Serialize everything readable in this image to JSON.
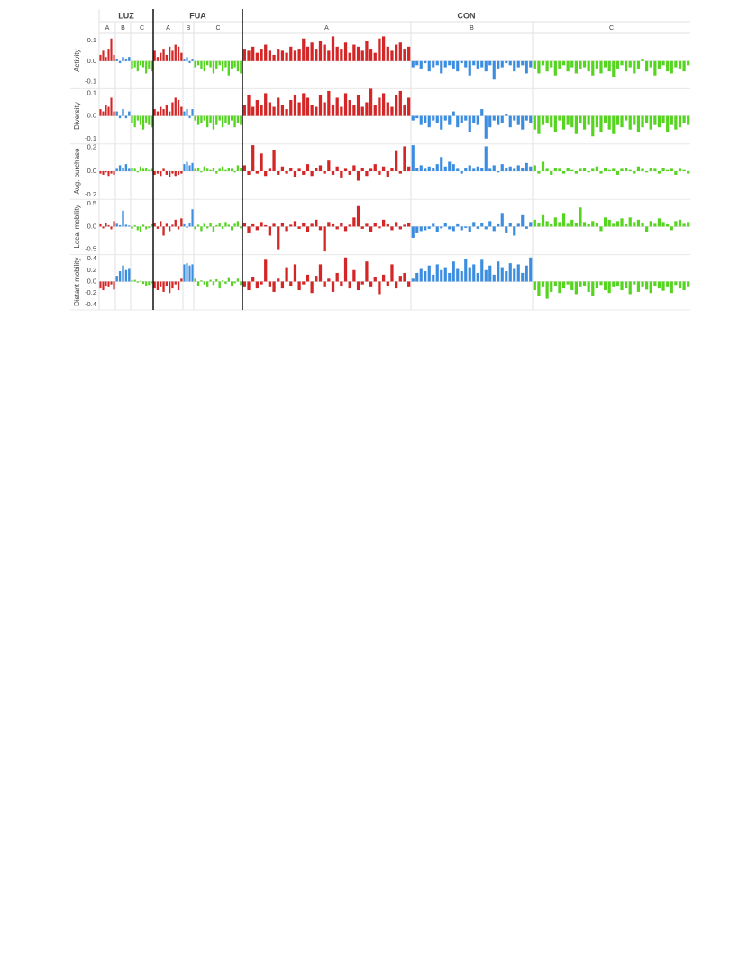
{
  "chart_data": {
    "type": "bar",
    "colors": [
      "#d42626",
      "#3b8de0",
      "#55d420"
    ],
    "regions": [
      {
        "name": "LUZ",
        "groups": [
          "A",
          "B",
          "C"
        ]
      },
      {
        "name": "FUA",
        "groups": [
          "A",
          "B",
          "C"
        ]
      },
      {
        "name": "CON",
        "groups": [
          "A",
          "B",
          "C"
        ]
      }
    ],
    "panels": [
      {
        "ylabel": "Activity",
        "ylim": [
          -0.13,
          0.135
        ],
        "yticks": [
          0.1,
          {
            "value": 0,
            "label": "0.0"
          },
          -0.1
        ],
        "values": [
          [
            [
              0.03,
              0.05,
              0.02,
              0.06,
              0.11,
              0.03
            ],
            [
              0.01,
              -0.01,
              0.02,
              0.01,
              0.02
            ],
            [
              -0.04,
              -0.03,
              -0.05,
              -0.02,
              -0.03,
              -0.06,
              -0.04,
              -0.05
            ]
          ],
          [
            [
              0.05,
              0.02,
              0.04,
              0.06,
              0.03,
              0.07,
              0.05,
              0.08,
              0.07,
              0.04
            ],
            [
              0.01,
              0.02,
              -0.01,
              0.01
            ],
            [
              -0.03,
              -0.02,
              -0.04,
              -0.05,
              -0.02,
              -0.03,
              -0.06,
              -0.04,
              -0.02,
              -0.05,
              -0.03,
              -0.07,
              -0.04,
              -0.03,
              -0.05,
              -0.06
            ]
          ],
          [
            [
              0.06,
              0.05,
              0.07,
              0.04,
              0.06,
              0.08,
              0.05,
              0.03,
              0.06,
              0.05,
              0.04,
              0.07,
              0.05,
              0.06,
              0.11,
              0.07,
              0.09,
              0.06,
              0.1,
              0.08,
              0.05,
              0.12,
              0.07,
              0.06,
              0.09,
              0.04,
              0.08,
              0.07,
              0.05,
              0.1,
              0.06,
              0.04,
              0.11,
              0.12,
              0.07,
              0.05,
              0.08,
              0.09,
              0.06,
              0.07
            ],
            [
              -0.03,
              -0.02,
              -0.04,
              -0.01,
              -0.05,
              -0.03,
              -0.02,
              -0.06,
              -0.03,
              -0.02,
              -0.04,
              -0.05,
              -0.01,
              -0.03,
              -0.07,
              -0.02,
              -0.04,
              -0.03,
              -0.05,
              -0.02,
              -0.09,
              -0.04,
              -0.03,
              -0.01,
              -0.02,
              -0.05,
              -0.03,
              -0.02,
              -0.06,
              -0.03
            ],
            [
              -0.04,
              -0.06,
              -0.02,
              -0.05,
              -0.03,
              -0.07,
              -0.04,
              -0.02,
              -0.05,
              -0.03,
              -0.06,
              -0.04,
              -0.03,
              -0.05,
              -0.07,
              -0.04,
              -0.06,
              -0.03,
              -0.05,
              -0.08,
              -0.04,
              -0.02,
              -0.05,
              -0.03,
              -0.06,
              -0.04,
              0.01,
              -0.05,
              -0.03,
              -0.07,
              -0.04,
              -0.02,
              -0.05,
              -0.06,
              -0.03,
              -0.04,
              -0.05,
              -0.02
            ]
          ]
        ]
      },
      {
        "ylabel": "Diversity",
        "ylim": [
          -0.12,
          0.12
        ],
        "yticks": [
          0.1,
          {
            "value": 0,
            "label": "0.0"
          },
          -0.1
        ],
        "values": [
          [
            [
              0.03,
              0.02,
              0.05,
              0.04,
              0.08,
              0.02
            ],
            [
              0.02,
              -0.01,
              0.03,
              -0.01,
              0.02
            ],
            [
              -0.03,
              -0.05,
              -0.02,
              -0.04,
              -0.06,
              -0.03,
              -0.04,
              -0.05
            ]
          ],
          [
            [
              0.03,
              0.02,
              0.04,
              0.03,
              0.05,
              0.02,
              0.06,
              0.08,
              0.07,
              0.04
            ],
            [
              0.02,
              0.03,
              -0.01,
              0.03
            ],
            [
              -0.02,
              -0.04,
              -0.03,
              -0.02,
              -0.05,
              -0.03,
              -0.06,
              -0.04,
              -0.02,
              -0.05,
              -0.03,
              -0.04,
              -0.02,
              -0.05,
              -0.03,
              -0.04
            ]
          ],
          [
            [
              0.05,
              0.09,
              0.04,
              0.07,
              0.05,
              0.1,
              0.06,
              0.04,
              0.08,
              0.05,
              0.03,
              0.07,
              0.09,
              0.06,
              0.1,
              0.08,
              0.05,
              0.04,
              0.09,
              0.06,
              0.11,
              0.05,
              0.08,
              0.04,
              0.1,
              0.07,
              0.05,
              0.09,
              0.04,
              0.06,
              0.12,
              0.05,
              0.08,
              0.1,
              0.06,
              0.04,
              0.09,
              0.11,
              0.05,
              0.08
            ],
            [
              -0.02,
              -0.01,
              -0.04,
              -0.03,
              -0.05,
              -0.02,
              -0.03,
              -0.06,
              -0.02,
              -0.04,
              0.02,
              -0.05,
              -0.03,
              -0.02,
              -0.07,
              -0.03,
              -0.04,
              0.03,
              -0.1,
              -0.05,
              -0.02,
              -0.04,
              -0.03,
              0.01,
              -0.05,
              -0.02,
              -0.04,
              -0.06,
              -0.02,
              -0.03
            ],
            [
              -0.06,
              -0.08,
              -0.04,
              -0.03,
              -0.05,
              -0.07,
              -0.02,
              -0.06,
              -0.04,
              -0.05,
              -0.08,
              -0.03,
              -0.06,
              -0.04,
              -0.09,
              -0.05,
              -0.07,
              -0.03,
              -0.06,
              -0.08,
              -0.04,
              -0.05,
              -0.02,
              -0.06,
              -0.04,
              -0.07,
              -0.05,
              -0.03,
              -0.06,
              -0.04,
              -0.05,
              -0.03,
              -0.07,
              -0.04,
              -0.06,
              -0.05,
              -0.03,
              -0.04
            ]
          ]
        ]
      },
      {
        "ylabel": "Avg. purchase",
        "ylim": [
          -0.23,
          0.23
        ],
        "yticks": [
          0.2,
          {
            "value": 0,
            "label": "0.0"
          },
          -0.2
        ],
        "values": [
          [
            [
              -0.02,
              -0.03,
              -0.01,
              -0.04,
              -0.02,
              -0.03
            ],
            [
              0.02,
              0.05,
              0.03,
              0.06,
              0.02
            ],
            [
              0.03,
              0.02,
              -0.01,
              0.04,
              0.02,
              0.03,
              0.01,
              0.02
            ]
          ],
          [
            [
              -0.03,
              -0.02,
              -0.04,
              0.02,
              -0.03,
              -0.05,
              -0.02,
              -0.04,
              -0.03,
              -0.02
            ],
            [
              0.06,
              0.08,
              0.05,
              0.07
            ],
            [
              0.02,
              0.03,
              -0.01,
              0.04,
              0.02,
              0.01,
              0.03,
              -0.02,
              0.02,
              0.04,
              0.01,
              0.03,
              0.02,
              -0.01,
              0.05,
              0.03
            ]
          ],
          [
            [
              0.05,
              -0.03,
              0.22,
              -0.02,
              0.15,
              -0.04,
              0.02,
              0.18,
              -0.03,
              0.04,
              -0.02,
              0.03,
              -0.05,
              0.02,
              -0.03,
              0.06,
              -0.04,
              0.03,
              0.05,
              -0.02,
              0.09,
              -0.03,
              0.04,
              -0.06,
              0.02,
              -0.03,
              0.05,
              -0.08,
              0.03,
              -0.04,
              0.02,
              0.06,
              -0.03,
              0.04,
              -0.05,
              0.03,
              0.17,
              -0.02,
              0.21,
              0.04
            ],
            [
              0.22,
              0.03,
              0.05,
              0.02,
              0.04,
              0.03,
              0.06,
              0.12,
              0.04,
              0.08,
              0.06,
              0.02,
              -0.02,
              0.03,
              0.05,
              0.02,
              0.04,
              0.03,
              0.21,
              0.02,
              0.05,
              -0.01,
              0.06,
              0.03,
              0.04,
              0.02,
              0.05,
              0.03,
              0.07,
              0.04
            ],
            [
              0.05,
              -0.02,
              0.08,
              0.02,
              -0.03,
              0.03,
              0.02,
              -0.02,
              0.03,
              0.01,
              -0.02,
              0.02,
              0.03,
              -0.01,
              0.02,
              0.04,
              -0.02,
              0.03,
              0.01,
              0.02,
              -0.03,
              0.02,
              0.03,
              0.01,
              -0.02,
              0.04,
              0.02,
              -0.01,
              0.03,
              0.02,
              -0.02,
              0.03,
              0.01,
              0.02,
              -0.03,
              0.02,
              0.01,
              -0.02
            ]
          ]
        ]
      },
      {
        "ylabel": "Local mobility",
        "ylim": [
          -0.6,
          0.6
        ],
        "yticks": [
          0.5,
          {
            "value": 0,
            "label": "0.0"
          },
          -0.5
        ],
        "values": [
          [
            [
              0.05,
              -0.04,
              0.08,
              0.03,
              -0.06,
              0.12
            ],
            [
              0.06,
              0.03,
              0.35,
              0.04,
              0.02
            ],
            [
              -0.05,
              0.03,
              -0.08,
              -0.12,
              0.04,
              -0.06,
              -0.03,
              0.05
            ]
          ],
          [
            [
              0.08,
              -0.05,
              0.12,
              -0.2,
              0.06,
              -0.1,
              0.04,
              0.15,
              -0.06,
              0.18
            ],
            [
              0.05,
              -0.03,
              0.08,
              0.38
            ],
            [
              -0.06,
              0.04,
              -0.1,
              0.06,
              -0.04,
              0.08,
              -0.12,
              0.03,
              0.07,
              -0.05,
              0.1,
              0.04,
              -0.08,
              0.06,
              0.12,
              -0.04
            ]
          ],
          [
            [
              0.08,
              -0.15,
              0.05,
              -0.08,
              0.1,
              0.03,
              -0.2,
              0.06,
              -0.5,
              0.08,
              -0.1,
              0.04,
              0.12,
              -0.05,
              0.07,
              -0.12,
              0.06,
              0.15,
              -0.08,
              -0.55,
              0.1,
              0.05,
              -0.06,
              0.08,
              -0.1,
              0.04,
              0.2,
              0.45,
              -0.05,
              0.06,
              -0.12,
              0.08,
              -0.04,
              0.15,
              0.05,
              -0.08,
              0.1,
              -0.06,
              0.04,
              0.08
            ],
            [
              -0.25,
              -0.15,
              -0.1,
              -0.08,
              -0.05,
              0.06,
              -0.12,
              -0.04,
              0.08,
              -0.06,
              -0.1,
              0.05,
              -0.08,
              -0.03,
              -0.12,
              0.1,
              -0.05,
              0.08,
              -0.06,
              0.12,
              -0.1,
              0.05,
              0.3,
              -0.15,
              0.08,
              -0.2,
              0.06,
              0.25,
              -0.05,
              0.1
            ],
            [
              0.15,
              0.08,
              0.25,
              0.12,
              0.05,
              0.2,
              0.1,
              0.3,
              0.06,
              0.15,
              0.08,
              0.42,
              0.1,
              0.05,
              0.12,
              0.08,
              -0.1,
              0.2,
              0.15,
              0.06,
              0.12,
              0.18,
              0.05,
              0.2,
              0.1,
              0.15,
              0.08,
              -0.12,
              0.12,
              0.06,
              0.18,
              0.1,
              0.05,
              -0.08,
              0.12,
              0.15,
              0.06,
              0.1
            ]
          ]
        ]
      },
      {
        "ylabel": "Distant mobility",
        "ylim": [
          -0.48,
          0.47
        ],
        "yticks": [
          0.4,
          0.2,
          {
            "value": 0,
            "label": "0.0"
          },
          -0.2,
          -0.4
        ],
        "values": [
          [
            [
              -0.12,
              -0.15,
              -0.08,
              -0.1,
              -0.05,
              -0.14
            ],
            [
              0.1,
              0.18,
              0.28,
              0.2,
              0.22
            ],
            [
              0.02,
              0.03,
              -0.02,
              0.01,
              -0.04,
              -0.08,
              -0.06,
              -0.03
            ]
          ],
          [
            [
              -0.12,
              -0.15,
              -0.1,
              -0.18,
              -0.08,
              -0.2,
              -0.12,
              -0.05,
              -0.15,
              0.05
            ],
            [
              0.3,
              0.32,
              0.28,
              0.3
            ],
            [
              0.05,
              -0.08,
              0.02,
              -0.05,
              -0.1,
              0.03,
              -0.06,
              0.04,
              -0.12,
              0.02,
              -0.04,
              0.06,
              -0.08,
              -0.03,
              0.05,
              -0.06
            ]
          ],
          [
            [
              -0.1,
              -0.15,
              0.08,
              -0.12,
              -0.05,
              0.38,
              -0.1,
              -0.18,
              0.05,
              -0.12,
              0.25,
              -0.08,
              0.3,
              -0.15,
              -0.05,
              0.12,
              -0.2,
              0.1,
              0.3,
              -0.1,
              0.05,
              -0.18,
              0.15,
              -0.08,
              0.42,
              -0.12,
              0.2,
              -0.15,
              -0.05,
              0.35,
              -0.1,
              0.08,
              -0.22,
              0.12,
              -0.08,
              0.3,
              -0.12,
              0.1,
              0.15,
              -0.1
            ],
            [
              0.05,
              0.15,
              0.22,
              0.18,
              0.28,
              0.12,
              0.3,
              0.2,
              0.25,
              0.15,
              0.35,
              0.22,
              0.18,
              0.4,
              0.25,
              0.3,
              0.15,
              0.38,
              0.2,
              0.28,
              0.12,
              0.35,
              0.25,
              0.18,
              0.32,
              0.22,
              0.3,
              0.15,
              0.28,
              0.42
            ],
            [
              -0.15,
              -0.25,
              -0.1,
              -0.3,
              -0.18,
              -0.08,
              -0.2,
              -0.12,
              -0.05,
              -0.15,
              -0.22,
              -0.1,
              -0.08,
              -0.18,
              -0.25,
              -0.12,
              -0.06,
              -0.15,
              -0.2,
              -0.1,
              -0.08,
              -0.15,
              -0.12,
              -0.22,
              -0.05,
              -0.18,
              -0.1,
              -0.14,
              -0.2,
              -0.08,
              -0.12,
              -0.16,
              -0.1,
              -0.2,
              -0.06,
              -0.12,
              -0.15,
              -0.1
            ]
          ]
        ]
      }
    ]
  }
}
